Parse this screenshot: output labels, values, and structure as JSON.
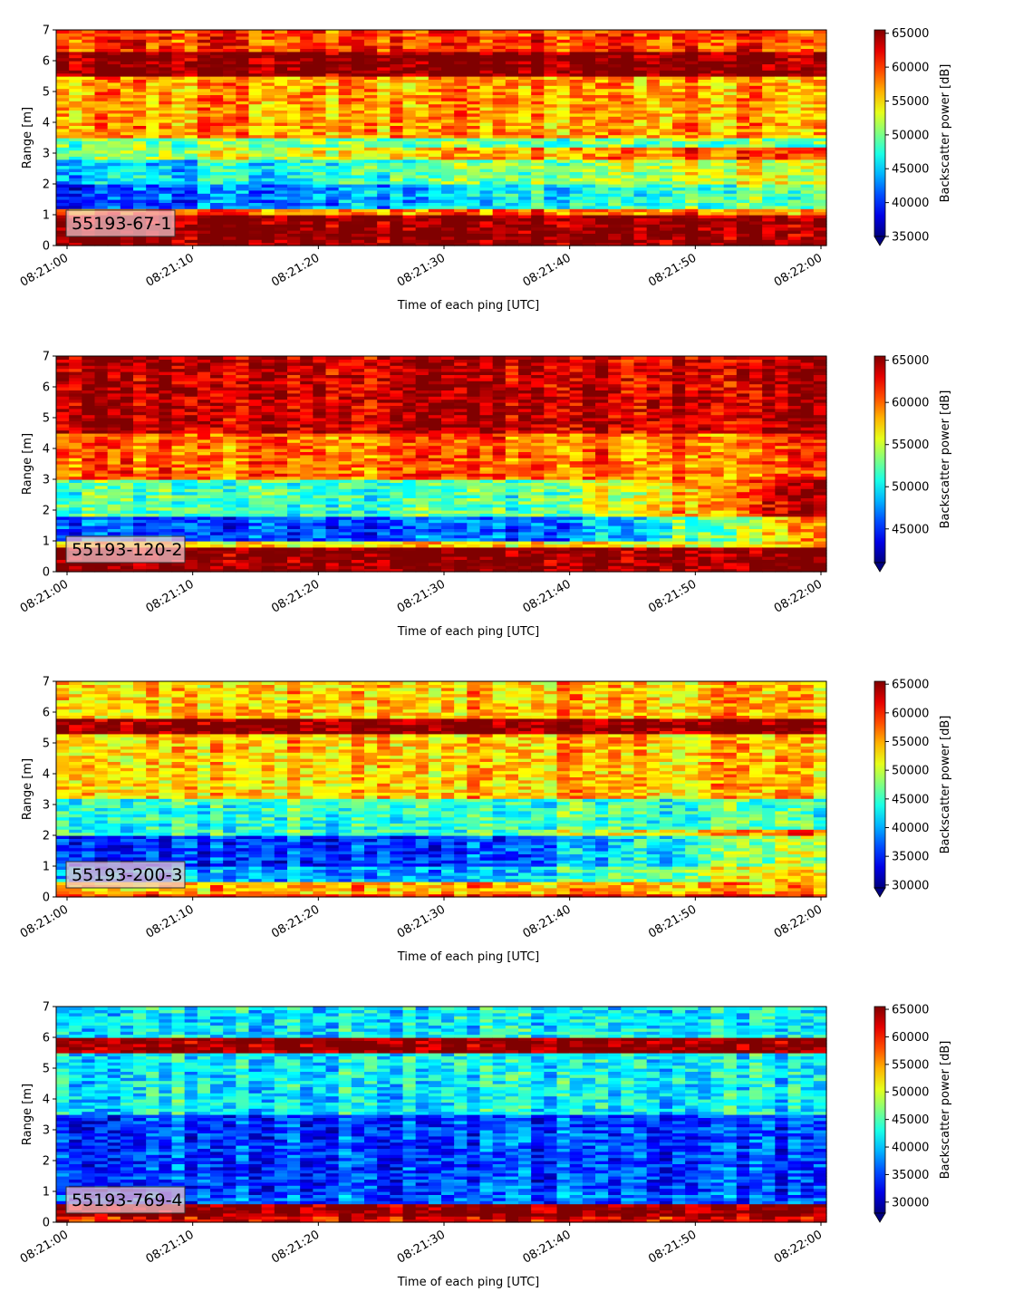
{
  "chart_data": [
    {
      "type": "heatmap",
      "label": "55193-67-1",
      "xlabel": "Time of each ping [UTC]",
      "ylabel": "Range [m]",
      "x_ticks": [
        "08:21:00",
        "08:21:10",
        "08:21:20",
        "08:21:30",
        "08:21:40",
        "08:21:50",
        "08:22:00"
      ],
      "x_range": [
        "08:21:00",
        "08:22:00"
      ],
      "y_ticks": [
        0,
        1,
        2,
        3,
        4,
        5,
        6,
        7
      ],
      "ylim": [
        0,
        7
      ],
      "colorbar_label": "Backscatter power [dB]",
      "colorbar_ticks": [
        35000,
        40000,
        45000,
        50000,
        55000,
        60000,
        65000
      ],
      "colorbar_range": [
        35000,
        65500
      ],
      "colormap": "jet",
      "colorbar_extend": "min",
      "profile": [
        {
          "range": [
            0.0,
            0.25
          ],
          "value": 65500
        },
        {
          "range": [
            0.25,
            1.0
          ],
          "value": 65500
        },
        {
          "range": [
            1.0,
            1.2
          ],
          "value": 58000
        },
        {
          "range": [
            1.2,
            2.0
          ],
          "value": 40000
        },
        {
          "range": [
            2.0,
            2.8
          ],
          "value": 44000
        },
        {
          "range": [
            2.8,
            3.5
          ],
          "value": 50000
        },
        {
          "range": [
            3.5,
            5.5
          ],
          "value": 57000
        },
        {
          "range": [
            5.5,
            6.3
          ],
          "value": 65500
        },
        {
          "range": [
            6.3,
            7.0
          ],
          "value": 60000
        }
      ],
      "trend": "low-backscatter band near 1.5-3 m in first 35 s, rising values later"
    },
    {
      "type": "heatmap",
      "label": "55193-120-2",
      "xlabel": "Time of each ping [UTC]",
      "ylabel": "Range [m]",
      "x_ticks": [
        "08:21:00",
        "08:21:10",
        "08:21:20",
        "08:21:30",
        "08:21:40",
        "08:21:50",
        "08:22:00"
      ],
      "x_range": [
        "08:21:00",
        "08:22:00"
      ],
      "y_ticks": [
        0,
        1,
        2,
        3,
        4,
        5,
        6,
        7
      ],
      "ylim": [
        0,
        7
      ],
      "colorbar_label": "Backscatter power [dB]",
      "colorbar_ticks": [
        45000,
        50000,
        55000,
        60000,
        65000
      ],
      "colorbar_range": [
        41000,
        65500
      ],
      "colormap": "jet",
      "colorbar_extend": "min",
      "profile": [
        {
          "range": [
            0.0,
            0.25
          ],
          "value": 65500
        },
        {
          "range": [
            0.25,
            0.8
          ],
          "value": 65500
        },
        {
          "range": [
            0.8,
            1.0
          ],
          "value": 57000
        },
        {
          "range": [
            1.0,
            1.8
          ],
          "value": 46000
        },
        {
          "range": [
            1.8,
            3.0
          ],
          "value": 52000
        },
        {
          "range": [
            3.0,
            4.5
          ],
          "value": 60000
        },
        {
          "range": [
            4.5,
            7.0
          ],
          "value": 64000
        }
      ],
      "trend": "low-backscatter band near 1-2 m in first 40 s, high values after 08:21:40"
    },
    {
      "type": "heatmap",
      "label": "55193-200-3",
      "xlabel": "Time of each ping [UTC]",
      "ylabel": "Range [m]",
      "x_ticks": [
        "08:21:00",
        "08:21:10",
        "08:21:20",
        "08:21:30",
        "08:21:40",
        "08:21:50",
        "08:22:00"
      ],
      "x_range": [
        "08:21:00",
        "08:22:00"
      ],
      "y_ticks": [
        0,
        1,
        2,
        3,
        4,
        5,
        6,
        7
      ],
      "ylim": [
        0,
        7
      ],
      "colorbar_label": "Backscatter power [dB]",
      "colorbar_ticks": [
        30000,
        35000,
        40000,
        45000,
        50000,
        55000,
        60000,
        65000
      ],
      "colorbar_range": [
        29500,
        65500
      ],
      "colormap": "jet",
      "colorbar_extend": "min",
      "profile": [
        {
          "range": [
            0.0,
            0.15
          ],
          "value": 60000
        },
        {
          "range": [
            0.15,
            0.45
          ],
          "value": 55000
        },
        {
          "range": [
            0.45,
            1.0
          ],
          "value": 40000
        },
        {
          "range": [
            1.0,
            2.0
          ],
          "value": 36000
        },
        {
          "range": [
            2.0,
            3.2
          ],
          "value": 45000
        },
        {
          "range": [
            3.2,
            5.3
          ],
          "value": 54000
        },
        {
          "range": [
            5.3,
            5.8
          ],
          "value": 65500
        },
        {
          "range": [
            5.8,
            7.0
          ],
          "value": 54000
        }
      ],
      "trend": "dark-blue band near 0.5-2 m fades after 08:21:35; red band at ~5.5 m throughout"
    },
    {
      "type": "heatmap",
      "label": "55193-769-4",
      "xlabel": "Time of each ping [UTC]",
      "ylabel": "Range [m]",
      "x_ticks": [
        "08:21:00",
        "08:21:10",
        "08:21:20",
        "08:21:30",
        "08:21:40",
        "08:21:50",
        "08:22:00"
      ],
      "x_range": [
        "08:21:00",
        "08:22:00"
      ],
      "y_ticks": [
        0,
        1,
        2,
        3,
        4,
        5,
        6,
        7
      ],
      "ylim": [
        0,
        7
      ],
      "colorbar_label": "Backscatter power [dB]",
      "colorbar_ticks": [
        30000,
        35000,
        40000,
        45000,
        50000,
        55000,
        60000,
        65000
      ],
      "colorbar_range": [
        28000,
        65500
      ],
      "colormap": "jet",
      "colorbar_extend": "min",
      "profile": [
        {
          "range": [
            0.0,
            0.25
          ],
          "value": 62000
        },
        {
          "range": [
            0.25,
            0.65
          ],
          "value": 65500
        },
        {
          "range": [
            0.65,
            1.0
          ],
          "value": 36000
        },
        {
          "range": [
            1.0,
            3.5
          ],
          "value": 35000
        },
        {
          "range": [
            3.5,
            5.5
          ],
          "value": 42000
        },
        {
          "range": [
            5.5,
            6.0
          ],
          "value": 65500
        },
        {
          "range": [
            6.0,
            7.0
          ],
          "value": 42000
        }
      ],
      "trend": "mostly blue field with red bands near 0.4 m and 5.8 m"
    }
  ]
}
